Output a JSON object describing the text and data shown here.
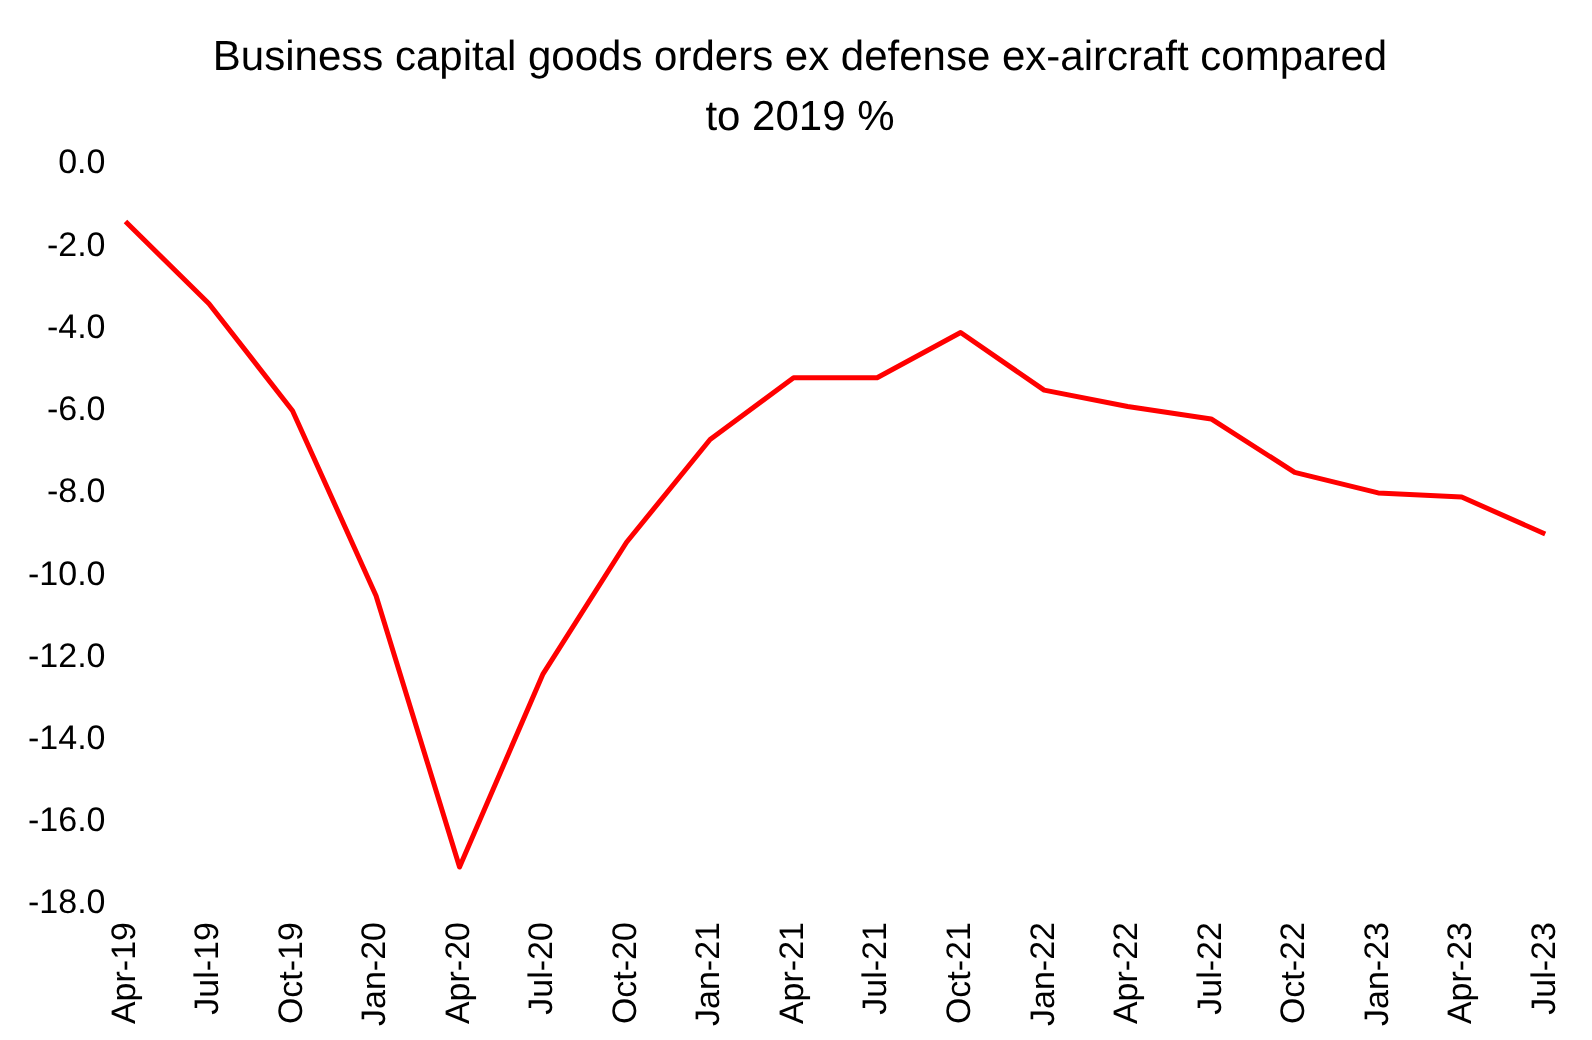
{
  "chart_data": {
    "type": "line",
    "title": "Business capital goods orders ex defense ex-aircraft compared to 2019 %",
    "categories": [
      "Apr-19",
      "Jul-19",
      "Oct-19",
      "Jan-20",
      "Apr-20",
      "Jul-20",
      "Oct-20",
      "Jan-21",
      "Apr-21",
      "Jul-21",
      "Oct-21",
      "Jan-22",
      "Apr-22",
      "Jul-22",
      "Oct-22",
      "Jan-23",
      "Apr-23",
      "Jul-23"
    ],
    "series": [
      {
        "color": "#ff0000",
        "values": [
          -1.4,
          -3.4,
          -6.0,
          -10.5,
          -17.1,
          -12.4,
          -9.2,
          -6.7,
          -5.2,
          -5.2,
          -4.1,
          -5.5,
          -5.9,
          -6.2,
          -7.5,
          -8.0,
          -8.1,
          -9.0
        ]
      }
    ],
    "ylim": [
      -18,
      0
    ],
    "yticks": [
      {
        "value": 0,
        "label": "0.0"
      },
      {
        "value": -2,
        "label": "-2.0"
      },
      {
        "value": -4,
        "label": "-4.0"
      },
      {
        "value": -6,
        "label": "-6.0"
      },
      {
        "value": -8,
        "label": "-8.0"
      },
      {
        "value": -10,
        "label": "-10.0"
      },
      {
        "value": -12,
        "label": "-12.0"
      },
      {
        "value": -14,
        "label": "-14.0"
      },
      {
        "value": -16,
        "label": "-16.0"
      },
      {
        "value": -18,
        "label": "-18.0"
      }
    ],
    "grid": false,
    "legend": false,
    "marker": "none",
    "line_style": "solid"
  }
}
